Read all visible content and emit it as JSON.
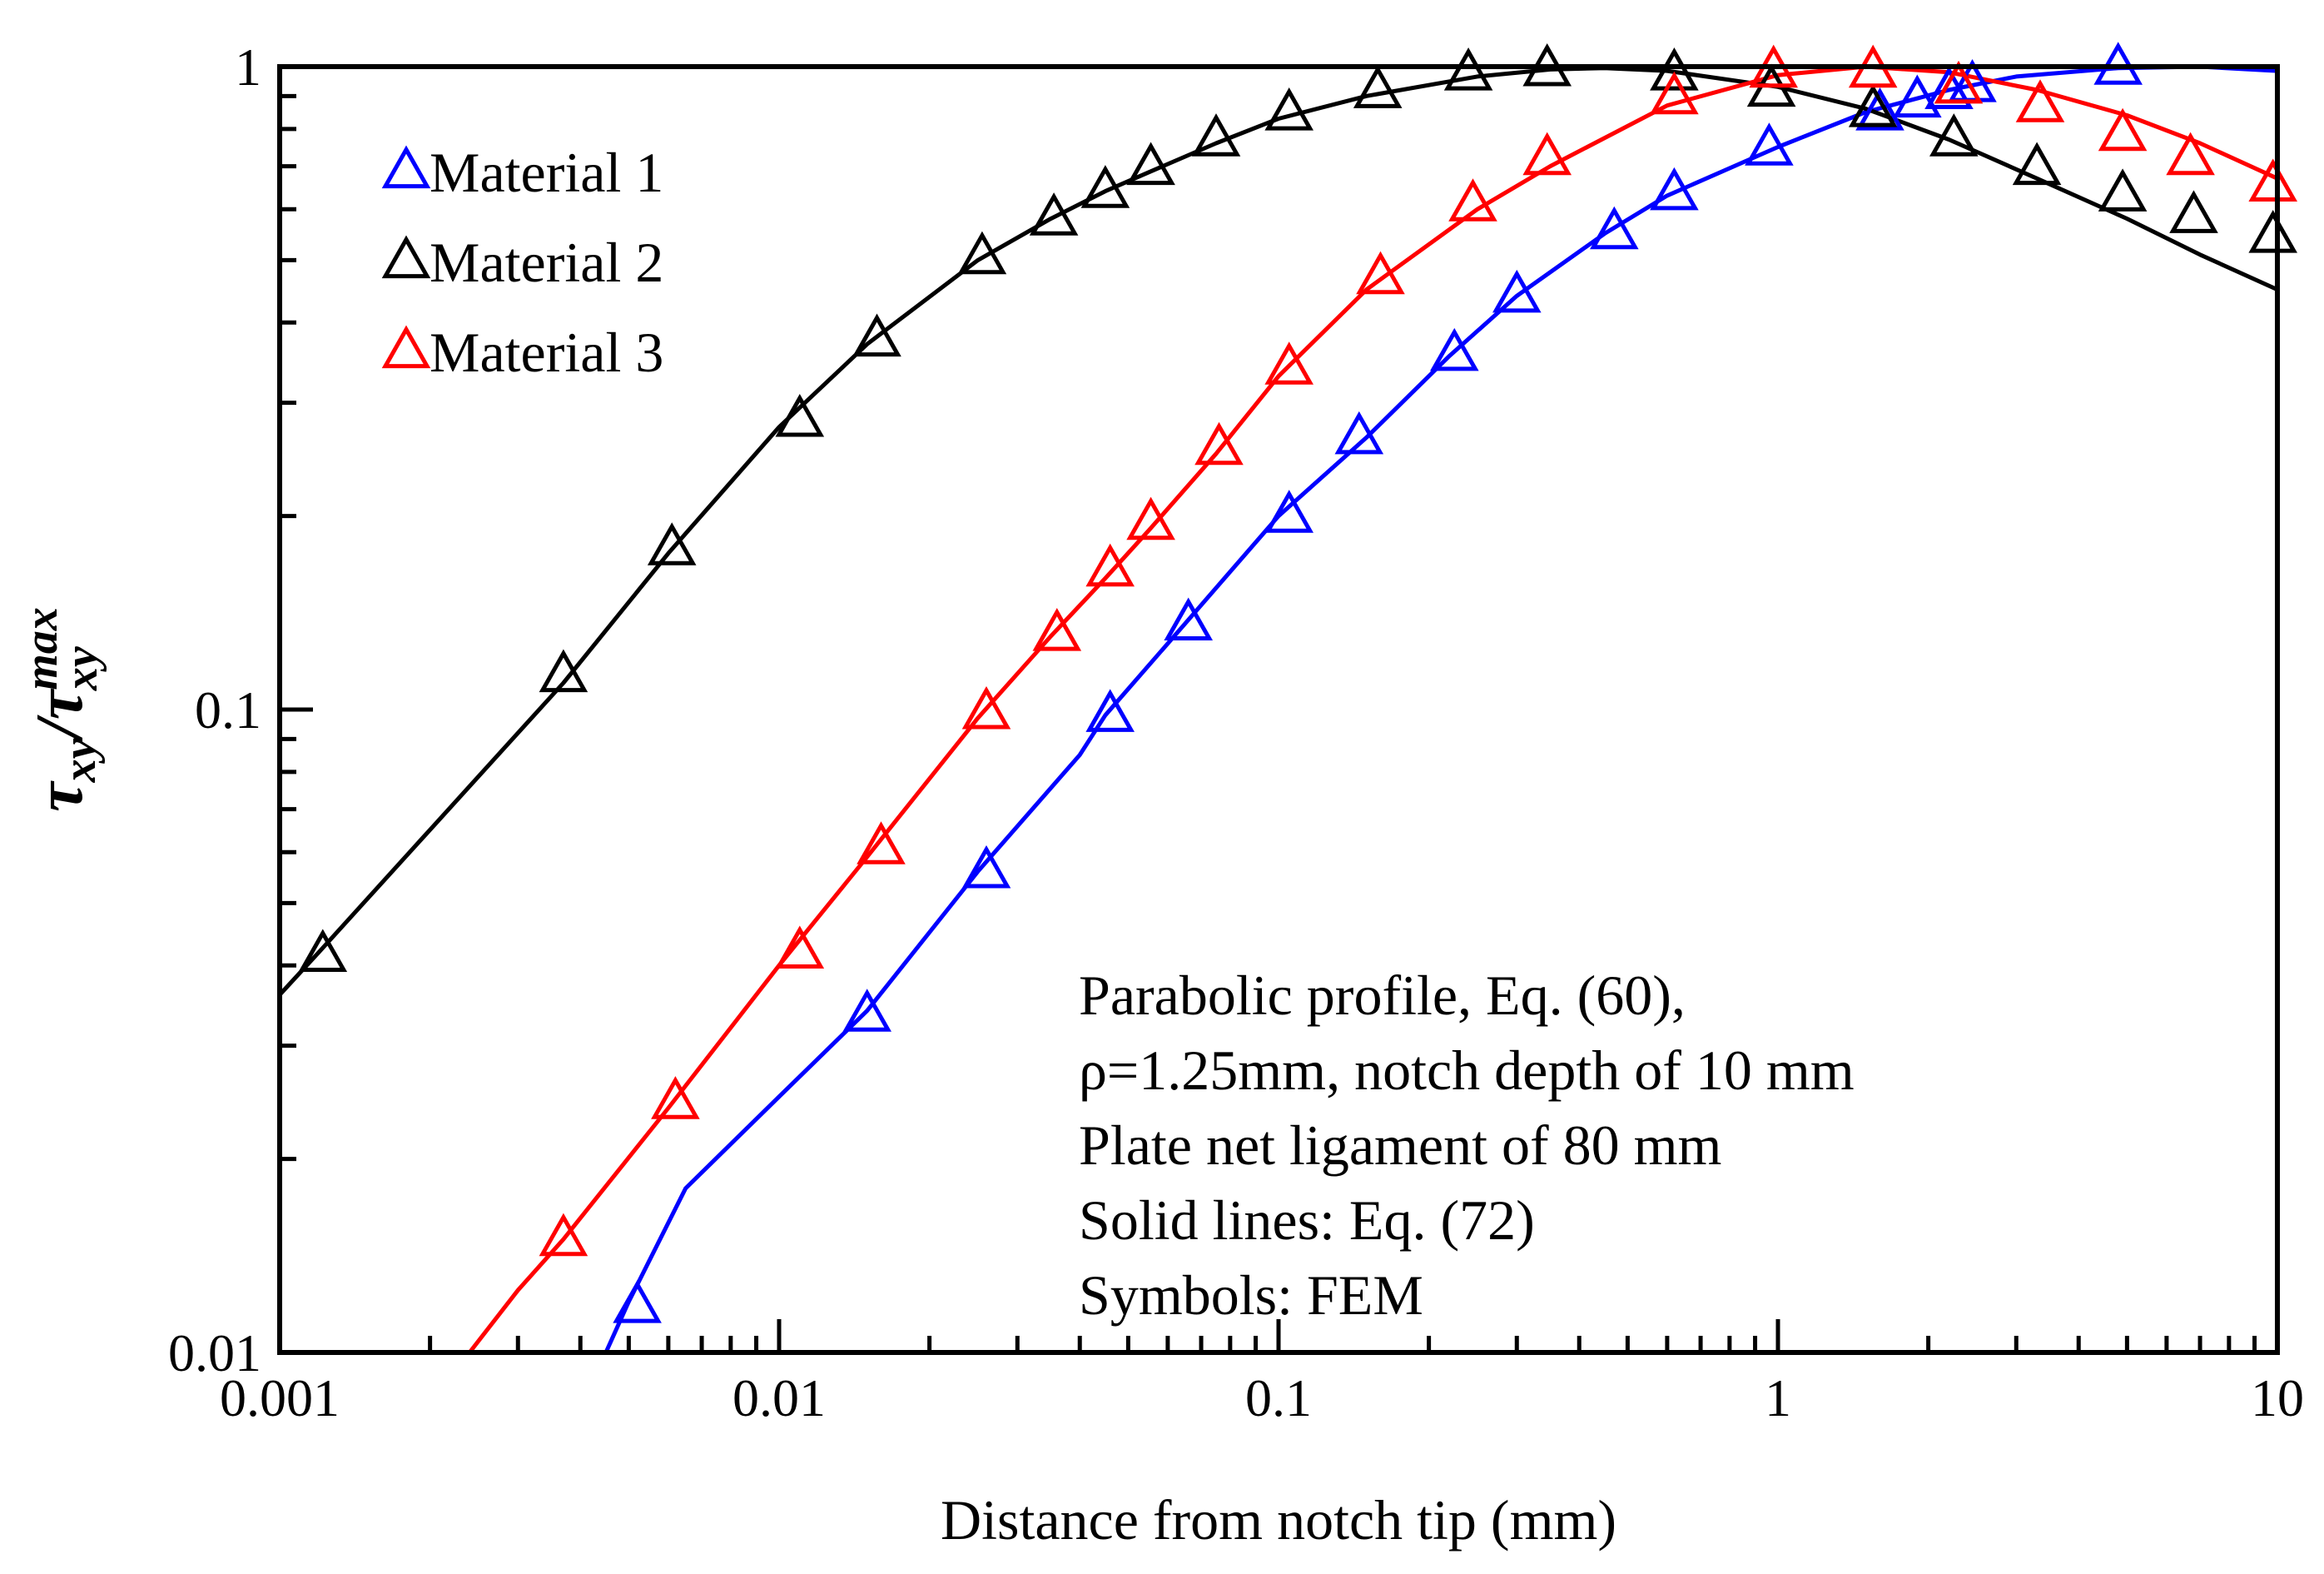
{
  "chart_data": {
    "type": "line",
    "title": "",
    "xlabel": "Distance from notch tip (mm)",
    "ylabel": {
      "main": "τ",
      "sub": "xy",
      "sep": "/",
      "main2": "τ",
      "sub2": "xy",
      "sup2": "max"
    },
    "xscale": "log",
    "yscale": "log",
    "xlim": [
      0.001,
      10
    ],
    "ylim": [
      0.01,
      1
    ],
    "x_ticks": [
      0.001,
      0.01,
      0.1,
      1,
      10
    ],
    "x_tick_labels": [
      "0.001",
      "0.01",
      "0.1",
      "1",
      "10"
    ],
    "y_ticks": [
      0.01,
      0.1,
      1
    ],
    "y_tick_labels": [
      "0.01",
      "0.1",
      "1"
    ],
    "legend_position": "top-left",
    "series": [
      {
        "name": "Material 1",
        "color": "#0000ff",
        "line": [
          [
            0.0045,
            0.01
          ],
          [
            0.005,
            0.012
          ],
          [
            0.0065,
            0.018
          ],
          [
            0.01,
            0.025
          ],
          [
            0.015,
            0.034
          ],
          [
            0.025,
            0.056
          ],
          [
            0.04,
            0.085
          ],
          [
            0.045,
            0.098
          ],
          [
            0.065,
            0.136
          ],
          [
            0.1,
            0.2
          ],
          [
            0.15,
            0.265
          ],
          [
            0.22,
            0.355
          ],
          [
            0.3,
            0.44
          ],
          [
            0.45,
            0.55
          ],
          [
            0.6,
            0.63
          ],
          [
            1.0,
            0.75
          ],
          [
            1.5,
            0.85
          ],
          [
            2.2,
            0.92
          ],
          [
            3.0,
            0.965
          ],
          [
            4.8,
            0.995
          ],
          [
            7.0,
            1.0
          ],
          [
            10,
            0.985
          ]
        ],
        "points": [
          [
            0.0052,
            0.0118
          ],
          [
            0.015,
            0.0335
          ],
          [
            0.026,
            0.056
          ],
          [
            0.046,
            0.098
          ],
          [
            0.066,
            0.136
          ],
          [
            0.105,
            0.2
          ],
          [
            0.145,
            0.265
          ],
          [
            0.225,
            0.357
          ],
          [
            0.3,
            0.44
          ],
          [
            0.47,
            0.552
          ],
          [
            0.62,
            0.635
          ],
          [
            0.96,
            0.745
          ],
          [
            1.6,
            0.845
          ],
          [
            1.9,
            0.885
          ],
          [
            2.2,
            0.912
          ],
          [
            2.45,
            0.935
          ],
          [
            4.8,
            0.995
          ]
        ]
      },
      {
        "name": "Material 2",
        "color": "#000000",
        "line": [
          [
            0.001,
            0.036
          ],
          [
            0.0012,
            0.042
          ],
          [
            0.002,
            0.065
          ],
          [
            0.0037,
            0.11
          ],
          [
            0.006,
            0.175
          ],
          [
            0.01,
            0.275
          ],
          [
            0.015,
            0.37
          ],
          [
            0.025,
            0.5
          ],
          [
            0.035,
            0.58
          ],
          [
            0.045,
            0.64
          ],
          [
            0.055,
            0.685
          ],
          [
            0.075,
            0.76
          ],
          [
            0.1,
            0.83
          ],
          [
            0.15,
            0.9
          ],
          [
            0.25,
            0.965
          ],
          [
            0.35,
            0.99
          ],
          [
            0.45,
            0.995
          ],
          [
            0.6,
            0.985
          ],
          [
            1.0,
            0.93
          ],
          [
            1.5,
            0.86
          ],
          [
            2.2,
            0.77
          ],
          [
            3.3,
            0.67
          ],
          [
            5.0,
            0.58
          ],
          [
            7.0,
            0.51
          ],
          [
            10,
            0.45
          ]
        ],
        "points": [
          [
            0.00122,
            0.0415
          ],
          [
            0.0037,
            0.113
          ],
          [
            0.0061,
            0.178
          ],
          [
            0.011,
            0.282
          ],
          [
            0.0157,
            0.376
          ],
          [
            0.0255,
            0.505
          ],
          [
            0.0355,
            0.58
          ],
          [
            0.045,
            0.64
          ],
          [
            0.0555,
            0.695
          ],
          [
            0.075,
            0.77
          ],
          [
            0.105,
            0.845
          ],
          [
            0.158,
            0.915
          ],
          [
            0.24,
            0.975
          ],
          [
            0.345,
            0.99
          ],
          [
            0.62,
            0.975
          ],
          [
            0.97,
            0.92
          ],
          [
            1.55,
            0.855
          ],
          [
            2.25,
            0.77
          ],
          [
            3.3,
            0.695
          ],
          [
            4.9,
            0.632
          ],
          [
            6.8,
            0.585
          ],
          [
            9.8,
            0.545
          ]
        ]
      },
      {
        "name": "Material 3",
        "color": "#ff0000",
        "line": [
          [
            0.0024,
            0.01
          ],
          [
            0.003,
            0.0125
          ],
          [
            0.0037,
            0.015
          ],
          [
            0.006,
            0.024
          ],
          [
            0.01,
            0.04
          ],
          [
            0.015,
            0.059
          ],
          [
            0.025,
            0.097
          ],
          [
            0.035,
            0.13
          ],
          [
            0.045,
            0.16
          ],
          [
            0.055,
            0.19
          ],
          [
            0.075,
            0.25
          ],
          [
            0.1,
            0.33
          ],
          [
            0.15,
            0.45
          ],
          [
            0.25,
            0.6
          ],
          [
            0.35,
            0.7
          ],
          [
            0.6,
            0.87
          ],
          [
            1.0,
            0.97
          ],
          [
            1.5,
            1.0
          ],
          [
            2.2,
            0.98
          ],
          [
            3.3,
            0.92
          ],
          [
            5.0,
            0.84
          ],
          [
            7.0,
            0.76
          ],
          [
            10,
            0.67
          ]
        ],
        "points": [
          [
            0.0037,
            0.015
          ],
          [
            0.0062,
            0.0245
          ],
          [
            0.011,
            0.042
          ],
          [
            0.016,
            0.061
          ],
          [
            0.026,
            0.099
          ],
          [
            0.036,
            0.131
          ],
          [
            0.046,
            0.165
          ],
          [
            0.0555,
            0.195
          ],
          [
            0.076,
            0.255
          ],
          [
            0.105,
            0.34
          ],
          [
            0.16,
            0.47
          ],
          [
            0.245,
            0.61
          ],
          [
            0.345,
            0.72
          ],
          [
            0.62,
            0.895
          ],
          [
            0.98,
            0.985
          ],
          [
            1.55,
            0.985
          ],
          [
            2.3,
            0.93
          ],
          [
            3.35,
            0.87
          ],
          [
            4.9,
            0.785
          ],
          [
            6.7,
            0.72
          ],
          [
            9.8,
            0.655
          ]
        ]
      }
    ],
    "annotation": [
      "Parabolic profile, Eq. (60),",
      "ρ=1.25mm, notch depth of 10 mm",
      "Plate net ligament of 80 mm",
      "Solid lines: Eq. (72)",
      "Symbols: FEM"
    ]
  }
}
